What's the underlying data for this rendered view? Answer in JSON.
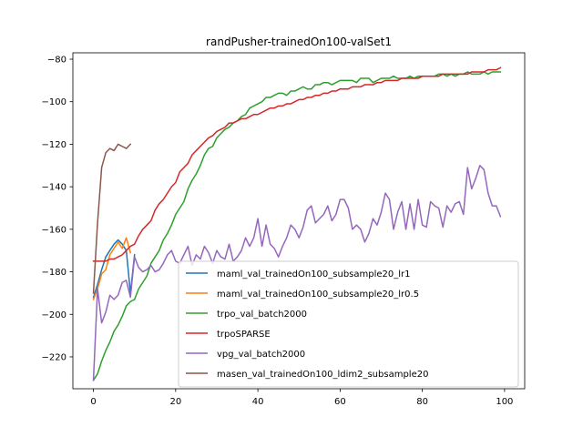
{
  "chart_data": {
    "type": "line",
    "title": "randPusher-trainedOn100-valSet1",
    "xlabel": "",
    "ylabel": "",
    "xlim": [
      -5,
      104.9
    ],
    "ylim": [
      -235,
      -77
    ],
    "xticks": [
      0,
      20,
      40,
      60,
      80,
      100
    ],
    "yticks": [
      -220,
      -200,
      -180,
      -160,
      -140,
      -120,
      -100,
      -80
    ],
    "grid": false,
    "legend_position": "lower-right",
    "series": [
      {
        "name": "maml_val_trainedOn100_subsample20_lr1",
        "color": "#1f77b4",
        "x": [
          0,
          1,
          2,
          3,
          4,
          5,
          6,
          7,
          8,
          9,
          10
        ],
        "y": [
          -192,
          -186,
          -179,
          -173,
          -170,
          -167,
          -165,
          -167,
          -170,
          -190,
          -172
        ]
      },
      {
        "name": "maml_val_trainedOn100_subsample20_lr0.5",
        "color": "#ff7f0e",
        "x": [
          0,
          1,
          2,
          3,
          4,
          5,
          6,
          7,
          8,
          9
        ],
        "y": [
          -193,
          -188,
          -181,
          -179,
          -172,
          -169,
          -166,
          -169,
          -164,
          -171
        ]
      },
      {
        "name": "trpo_val_batch2000",
        "color": "#2ca02c",
        "x": [
          0,
          1,
          2,
          3,
          4,
          5,
          6,
          7,
          8,
          9,
          10,
          11,
          12,
          13,
          14,
          15,
          16,
          17,
          18,
          19,
          20,
          21,
          22,
          23,
          24,
          25,
          26,
          27,
          28,
          29,
          30,
          31,
          32,
          33,
          34,
          35,
          36,
          37,
          38,
          39,
          40,
          41,
          42,
          43,
          44,
          45,
          46,
          47,
          48,
          49,
          50,
          51,
          52,
          53,
          54,
          55,
          56,
          57,
          58,
          59,
          60,
          61,
          62,
          63,
          64,
          65,
          66,
          67,
          68,
          69,
          70,
          71,
          72,
          73,
          74,
          75,
          76,
          77,
          78,
          79,
          80,
          81,
          82,
          83,
          84,
          85,
          86,
          87,
          88,
          89,
          90,
          91,
          92,
          93,
          94,
          95,
          96,
          97,
          98,
          99
        ],
        "y": [
          -231,
          -228,
          -222,
          -217,
          -213,
          -208,
          -205,
          -201,
          -196,
          -194,
          -193,
          -188,
          -185,
          -182,
          -176,
          -173,
          -170,
          -165,
          -162,
          -158,
          -153,
          -150,
          -147,
          -141,
          -137,
          -134,
          -130,
          -125,
          -122,
          -121,
          -117,
          -115,
          -113,
          -112,
          -110,
          -109,
          -107,
          -106,
          -103,
          -102,
          -101,
          -100,
          -98,
          -98,
          -97,
          -96,
          -96,
          -97,
          -95,
          -95,
          -94,
          -93,
          -94,
          -94,
          -92,
          -92,
          -91,
          -91,
          -92,
          -91,
          -90,
          -90,
          -90,
          -90,
          -91,
          -89,
          -89,
          -89,
          -91,
          -90,
          -89,
          -89,
          -89,
          -88,
          -89,
          -89,
          -89,
          -88,
          -89,
          -88,
          -88,
          -88,
          -88,
          -88,
          -87,
          -87,
          -88,
          -87,
          -88,
          -87,
          -87,
          -86,
          -87,
          -87,
          -87,
          -86,
          -87,
          -86,
          -86,
          -86
        ]
      },
      {
        "name": "trpoSPARSE",
        "color": "#d62728",
        "x": [
          0,
          1,
          2,
          3,
          4,
          5,
          6,
          7,
          8,
          9,
          10,
          11,
          12,
          13,
          14,
          15,
          16,
          17,
          18,
          19,
          20,
          21,
          22,
          23,
          24,
          25,
          26,
          27,
          28,
          29,
          30,
          31,
          32,
          33,
          34,
          35,
          36,
          37,
          38,
          39,
          40,
          41,
          42,
          43,
          44,
          45,
          46,
          47,
          48,
          49,
          50,
          51,
          52,
          53,
          54,
          55,
          56,
          57,
          58,
          59,
          60,
          61,
          62,
          63,
          64,
          65,
          66,
          67,
          68,
          69,
          70,
          71,
          72,
          73,
          74,
          75,
          76,
          77,
          78,
          79,
          80,
          81,
          82,
          83,
          84,
          85,
          86,
          87,
          88,
          89,
          90,
          91,
          92,
          93,
          94,
          95,
          96,
          97,
          98,
          99
        ],
        "y": [
          -175,
          -175,
          -175,
          -175,
          -174,
          -174,
          -173,
          -172,
          -170,
          -168,
          -167,
          -163,
          -160,
          -158,
          -156,
          -151,
          -148,
          -146,
          -143,
          -140,
          -138,
          -133,
          -131,
          -129,
          -125,
          -123,
          -121,
          -119,
          -117,
          -116,
          -114,
          -113,
          -112,
          -110,
          -110,
          -109,
          -108,
          -108,
          -107,
          -106,
          -106,
          -105,
          -104,
          -103,
          -103,
          -102,
          -102,
          -101,
          -101,
          -100,
          -99,
          -99,
          -98,
          -98,
          -97,
          -97,
          -96,
          -96,
          -95,
          -95,
          -94,
          -94,
          -94,
          -93,
          -93,
          -93,
          -92,
          -92,
          -92,
          -91,
          -91,
          -90,
          -90,
          -90,
          -90,
          -89,
          -89,
          -89,
          -89,
          -89,
          -88,
          -88,
          -88,
          -88,
          -88,
          -87,
          -87,
          -87,
          -87,
          -87,
          -87,
          -87,
          -86,
          -86,
          -86,
          -86,
          -85,
          -85,
          -85,
          -84
        ]
      },
      {
        "name": "vpg_val_batch2000",
        "color": "#9467bd",
        "x": [
          0,
          1,
          2,
          3,
          4,
          5,
          6,
          7,
          8,
          9,
          10,
          11,
          12,
          13,
          14,
          15,
          16,
          17,
          18,
          19,
          20,
          21,
          22,
          23,
          24,
          25,
          26,
          27,
          28,
          29,
          30,
          31,
          32,
          33,
          34,
          35,
          36,
          37,
          38,
          39,
          40,
          41,
          42,
          43,
          44,
          45,
          46,
          47,
          48,
          49,
          50,
          51,
          52,
          53,
          54,
          55,
          56,
          57,
          58,
          59,
          60,
          61,
          62,
          63,
          64,
          65,
          66,
          67,
          68,
          69,
          70,
          71,
          72,
          73,
          74,
          75,
          76,
          77,
          78,
          79,
          80,
          81,
          82,
          83,
          84,
          85,
          86,
          87,
          88,
          89,
          90,
          91,
          92,
          93,
          94,
          95,
          96,
          97,
          98,
          99
        ],
        "y": [
          -231,
          -188,
          -204,
          -199,
          -191,
          -193,
          -191,
          -185,
          -184,
          -192,
          -173,
          -178,
          -180,
          -179,
          -177,
          -180,
          -179,
          -176,
          -172,
          -170,
          -175,
          -176,
          -172,
          -168,
          -177,
          -172,
          -174,
          -168,
          -171,
          -176,
          -170,
          -173,
          -174,
          -167,
          -175,
          -173,
          -170,
          -164,
          -168,
          -164,
          -155,
          -168,
          -158,
          -167,
          -169,
          -173,
          -168,
          -164,
          -158,
          -160,
          -164,
          -159,
          -151,
          -149,
          -157,
          -155,
          -153,
          -149,
          -156,
          -153,
          -146,
          -146,
          -150,
          -160,
          -158,
          -160,
          -166,
          -162,
          -155,
          -158,
          -152,
          -143,
          -146,
          -160,
          -152,
          -147,
          -160,
          -148,
          -160,
          -146,
          -158,
          -159,
          -147,
          -149,
          -150,
          -159,
          -149,
          -152,
          -148,
          -147,
          -153,
          -131,
          -141,
          -136,
          -130,
          -132,
          -143,
          -149,
          -149,
          -154
        ]
      },
      {
        "name": "masen_val_trainedOn100_ldim2_subsample20",
        "color": "#8c564b",
        "x": [
          0,
          1,
          2,
          3,
          4,
          5,
          6,
          7,
          8,
          9
        ],
        "y": [
          -190,
          -157,
          -131,
          -124,
          -122,
          -123,
          -120,
          -121,
          -122,
          -120
        ]
      }
    ]
  }
}
